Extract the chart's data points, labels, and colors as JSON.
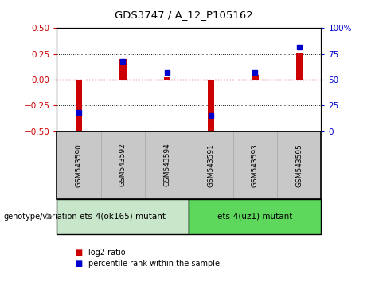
{
  "title": "GDS3747 / A_12_P105162",
  "samples": [
    "GSM543590",
    "GSM543592",
    "GSM543594",
    "GSM543591",
    "GSM543593",
    "GSM543595"
  ],
  "log2_ratio": [
    -0.52,
    0.2,
    0.02,
    -0.5,
    0.05,
    0.26
  ],
  "percentile_rank": [
    18,
    68,
    57,
    15,
    57,
    82
  ],
  "group1_label": "ets-4(ok165) mutant",
  "group2_label": "ets-4(uz1) mutant",
  "group1_count": 3,
  "group2_count": 3,
  "ylim_left": [
    -0.5,
    0.5
  ],
  "ylim_right": [
    0,
    100
  ],
  "yticks_left": [
    -0.5,
    -0.25,
    0,
    0.25,
    0.5
  ],
  "yticks_right": [
    0,
    25,
    50,
    75,
    100
  ],
  "bar_color": "#cc0000",
  "dot_color": "#0000cc",
  "group1_bg": "#c8e6c9",
  "group2_bg": "#5dd85c",
  "tick_bg": "#c8c8c8",
  "legend_bar_label": "log2 ratio",
  "legend_dot_label": "percentile rank within the sample",
  "hline_color": "#cc0000",
  "bar_width": 0.15
}
